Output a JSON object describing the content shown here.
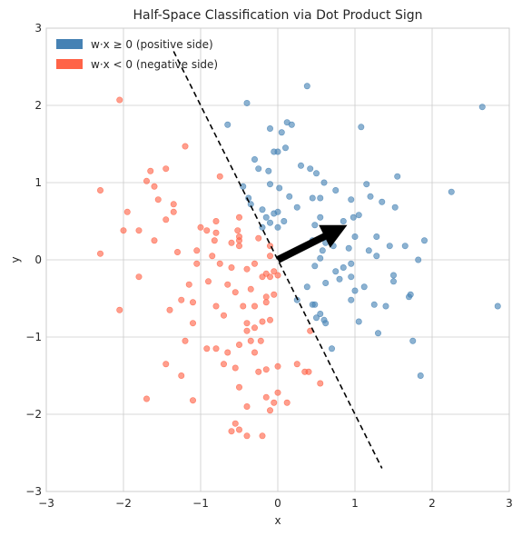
{
  "chart_data": {
    "type": "scatter",
    "title": "Half-Space Classification via Dot Product Sign",
    "xlabel": "x",
    "ylabel": "y",
    "xlim": [
      -3,
      3
    ],
    "ylim": [
      -3,
      3
    ],
    "xticks": [
      "−3",
      "−2",
      "−1",
      "0",
      "1",
      "2",
      "3"
    ],
    "yticks": [
      "−3",
      "−2",
      "−1",
      "0",
      "1",
      "2",
      "3"
    ],
    "grid": true,
    "legend_position": "top-left",
    "weight_vector": {
      "from": [
        0,
        0
      ],
      "to": [
        0.9,
        0.45
      ],
      "color": "#000000"
    },
    "decision_boundary": {
      "from": [
        -1.35,
        2.7
      ],
      "to": [
        1.35,
        -2.7
      ],
      "style": "dashed",
      "color": "#000000"
    },
    "series": [
      {
        "name": "w·x ≥ 0 (positive side)",
        "color": "#4682b4",
        "points": [
          [
            -0.4,
            2.03
          ],
          [
            0.38,
            2.25
          ],
          [
            -0.65,
            1.75
          ],
          [
            -0.1,
            1.7
          ],
          [
            0.12,
            1.78
          ],
          [
            0.18,
            1.75
          ],
          [
            0.05,
            1.65
          ],
          [
            1.08,
            1.72
          ],
          [
            2.65,
            1.98
          ],
          [
            0.0,
            1.4
          ],
          [
            0.1,
            1.45
          ],
          [
            -0.05,
            1.4
          ],
          [
            -0.3,
            1.3
          ],
          [
            -0.25,
            1.18
          ],
          [
            -0.12,
            1.15
          ],
          [
            0.3,
            1.22
          ],
          [
            0.42,
            1.18
          ],
          [
            0.5,
            1.12
          ],
          [
            0.6,
            1.0
          ],
          [
            1.15,
            0.98
          ],
          [
            1.55,
            1.08
          ],
          [
            2.25,
            0.88
          ],
          [
            -0.45,
            0.95
          ],
          [
            -0.38,
            0.8
          ],
          [
            -0.1,
            0.98
          ],
          [
            0.02,
            0.93
          ],
          [
            0.15,
            0.82
          ],
          [
            0.45,
            0.8
          ],
          [
            0.55,
            0.8
          ],
          [
            1.2,
            0.82
          ],
          [
            0.75,
            0.9
          ],
          [
            0.95,
            0.78
          ],
          [
            1.35,
            0.75
          ],
          [
            1.52,
            0.68
          ],
          [
            -0.35,
            0.72
          ],
          [
            -0.2,
            0.65
          ],
          [
            -0.15,
            0.55
          ],
          [
            -0.05,
            0.6
          ],
          [
            0.0,
            0.62
          ],
          [
            -0.1,
            0.48
          ],
          [
            0.0,
            0.42
          ],
          [
            0.08,
            0.5
          ],
          [
            -0.2,
            0.42
          ],
          [
            0.25,
            0.68
          ],
          [
            0.55,
            0.55
          ],
          [
            0.48,
            0.45
          ],
          [
            0.65,
            0.35
          ],
          [
            0.85,
            0.5
          ],
          [
            0.98,
            0.55
          ],
          [
            1.05,
            0.58
          ],
          [
            1.0,
            0.3
          ],
          [
            0.92,
            0.15
          ],
          [
            0.62,
            0.22
          ],
          [
            0.58,
            0.12
          ],
          [
            0.72,
            0.18
          ],
          [
            0.45,
            0.25
          ],
          [
            1.28,
            0.3
          ],
          [
            1.18,
            0.12
          ],
          [
            1.28,
            0.05
          ],
          [
            1.45,
            0.18
          ],
          [
            1.65,
            0.18
          ],
          [
            1.9,
            0.25
          ],
          [
            1.82,
            0.0
          ],
          [
            1.5,
            -0.2
          ],
          [
            0.95,
            -0.05
          ],
          [
            0.85,
            -0.1
          ],
          [
            0.75,
            -0.15
          ],
          [
            0.55,
            0.02
          ],
          [
            0.48,
            -0.08
          ],
          [
            0.62,
            -0.3
          ],
          [
            0.38,
            -0.35
          ],
          [
            0.8,
            -0.25
          ],
          [
            0.95,
            -0.22
          ],
          [
            1.0,
            -0.4
          ],
          [
            1.12,
            -0.35
          ],
          [
            1.5,
            -0.28
          ],
          [
            1.72,
            -0.45
          ],
          [
            1.7,
            -0.48
          ],
          [
            0.25,
            -0.52
          ],
          [
            0.45,
            -0.58
          ],
          [
            0.48,
            -0.58
          ],
          [
            0.55,
            -0.7
          ],
          [
            0.5,
            -0.75
          ],
          [
            0.6,
            -0.78
          ],
          [
            0.95,
            -0.52
          ],
          [
            1.25,
            -0.58
          ],
          [
            1.4,
            -0.6
          ],
          [
            0.62,
            -0.82
          ],
          [
            1.05,
            -0.8
          ],
          [
            1.3,
            -0.95
          ],
          [
            1.75,
            -1.05
          ],
          [
            0.7,
            -1.15
          ],
          [
            1.85,
            -1.5
          ],
          [
            2.85,
            -0.6
          ]
        ]
      },
      {
        "name": "w·x < 0 (negative side)",
        "color": "#ff6347",
        "points": [
          [
            -2.05,
            2.07
          ],
          [
            -1.2,
            1.47
          ],
          [
            -1.65,
            1.15
          ],
          [
            -1.45,
            1.18
          ],
          [
            -1.7,
            1.02
          ],
          [
            -1.6,
            0.95
          ],
          [
            -1.55,
            0.78
          ],
          [
            -1.35,
            0.72
          ],
          [
            -1.35,
            0.62
          ],
          [
            -1.45,
            0.52
          ],
          [
            -0.75,
            1.08
          ],
          [
            -2.3,
            0.9
          ],
          [
            -1.95,
            0.62
          ],
          [
            -2.0,
            0.38
          ],
          [
            -1.8,
            0.38
          ],
          [
            -1.6,
            0.25
          ],
          [
            -1.3,
            0.1
          ],
          [
            -1.05,
            0.12
          ],
          [
            -2.3,
            0.08
          ],
          [
            -1.0,
            0.42
          ],
          [
            -0.92,
            0.38
          ],
          [
            -0.8,
            0.35
          ],
          [
            -0.8,
            0.5
          ],
          [
            -0.5,
            0.55
          ],
          [
            -0.82,
            0.25
          ],
          [
            -0.6,
            0.22
          ],
          [
            -0.5,
            0.3
          ],
          [
            -0.5,
            0.25
          ],
          [
            -0.5,
            0.18
          ],
          [
            -0.52,
            0.38
          ],
          [
            -0.25,
            0.28
          ],
          [
            -0.1,
            0.18
          ],
          [
            -0.1,
            0.05
          ],
          [
            -0.85,
            0.05
          ],
          [
            -1.05,
            -0.05
          ],
          [
            -0.75,
            -0.05
          ],
          [
            -0.6,
            -0.1
          ],
          [
            -0.4,
            -0.12
          ],
          [
            -0.3,
            -0.05
          ],
          [
            -0.15,
            -0.18
          ],
          [
            -0.2,
            -0.22
          ],
          [
            -0.1,
            -0.22
          ],
          [
            -0.05,
            -0.15
          ],
          [
            0.0,
            -0.2
          ],
          [
            -1.8,
            -0.22
          ],
          [
            -1.15,
            -0.32
          ],
          [
            -0.9,
            -0.28
          ],
          [
            -0.65,
            -0.32
          ],
          [
            -0.55,
            -0.42
          ],
          [
            -0.35,
            -0.38
          ],
          [
            -0.15,
            -0.48
          ],
          [
            -0.3,
            -0.6
          ],
          [
            -0.15,
            -0.55
          ],
          [
            -0.05,
            -0.45
          ],
          [
            -1.25,
            -0.52
          ],
          [
            -1.1,
            -0.55
          ],
          [
            -1.4,
            -0.65
          ],
          [
            -1.1,
            -0.82
          ],
          [
            -0.8,
            -0.6
          ],
          [
            -0.7,
            -0.72
          ],
          [
            -0.45,
            -0.6
          ],
          [
            -0.4,
            -0.82
          ],
          [
            -0.4,
            -0.92
          ],
          [
            -0.2,
            -0.8
          ],
          [
            -0.1,
            -0.78
          ],
          [
            -0.3,
            -0.88
          ],
          [
            -0.22,
            -1.05
          ],
          [
            -0.35,
            -1.05
          ],
          [
            -1.2,
            -1.05
          ],
          [
            -0.92,
            -1.15
          ],
          [
            -0.8,
            -1.15
          ],
          [
            -0.65,
            -1.2
          ],
          [
            -0.5,
            -1.1
          ],
          [
            -0.3,
            -1.2
          ],
          [
            -1.45,
            -1.35
          ],
          [
            -1.25,
            -1.5
          ],
          [
            -0.7,
            -1.35
          ],
          [
            -0.55,
            -1.4
          ],
          [
            -0.25,
            -1.45
          ],
          [
            -0.15,
            -1.42
          ],
          [
            0.0,
            -1.38
          ],
          [
            0.25,
            -1.35
          ],
          [
            0.35,
            -1.45
          ],
          [
            0.4,
            -1.45
          ],
          [
            0.55,
            -1.6
          ],
          [
            0.42,
            -0.92
          ],
          [
            -2.05,
            -0.65
          ],
          [
            -0.5,
            -1.65
          ],
          [
            -0.15,
            -1.78
          ],
          [
            0.0,
            -1.72
          ],
          [
            -0.05,
            -1.85
          ],
          [
            0.12,
            -1.85
          ],
          [
            -1.7,
            -1.8
          ],
          [
            -1.1,
            -1.82
          ],
          [
            -0.4,
            -1.9
          ],
          [
            -0.1,
            -1.95
          ],
          [
            -0.55,
            -2.12
          ],
          [
            -0.5,
            -2.2
          ],
          [
            -0.6,
            -2.22
          ],
          [
            -0.4,
            -2.28
          ],
          [
            -0.2,
            -2.28
          ]
        ]
      }
    ]
  }
}
